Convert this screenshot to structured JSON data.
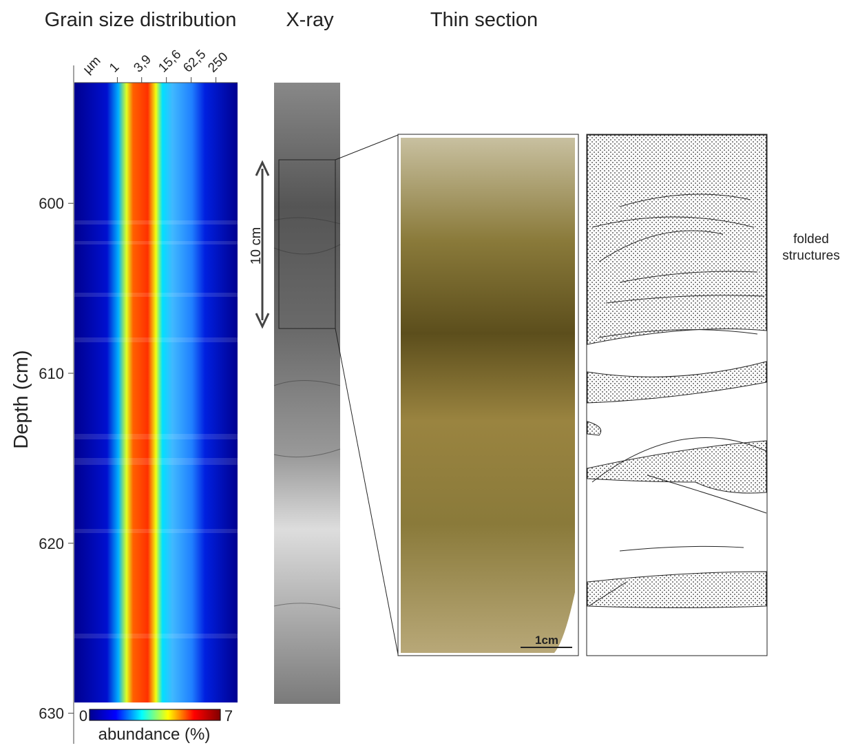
{
  "titles": {
    "grain_size": "Grain size distribution",
    "xray": "X-ray",
    "thin_section": "Thin section"
  },
  "chart_data": {
    "type": "heatmap",
    "ylabel": "Depth (cm)",
    "ylim": [
      592.9,
      631.8
    ],
    "yticks": [
      600,
      610,
      620,
      630
    ],
    "xunit": "µm",
    "xscale": "log",
    "xlim": [
      0.09,
      840
    ],
    "xticks": [
      1,
      {
        "value": 3.9,
        "label": "3,9"
      },
      {
        "value": 15.6,
        "label": "15,6"
      },
      {
        "value": 62.5,
        "label": "62,5"
      },
      250
    ],
    "colorbar": {
      "label": "abundance (%)",
      "range": [
        0,
        7
      ],
      "colors": [
        "#00008f",
        "#0000ff",
        "#00ffff",
        "#ffff00",
        "#ff0000",
        "#800000"
      ]
    }
  },
  "annotations": {
    "xray_scale": "10 cm",
    "thin_section_scale": "1cm",
    "sketch_note": "folded structures"
  }
}
